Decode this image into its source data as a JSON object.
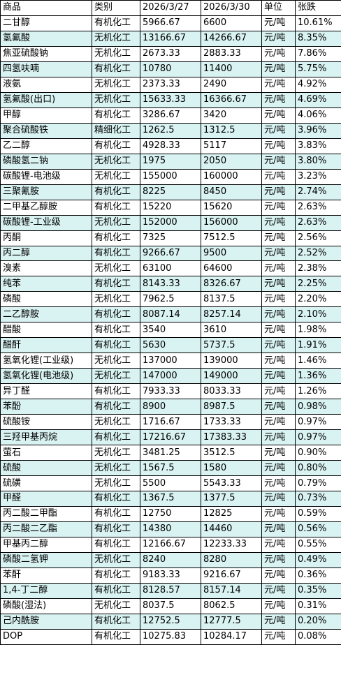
{
  "colors": {
    "row_alt_bg": "#d9f2f2",
    "border": "#000000",
    "text": "#000000"
  },
  "headers": [
    "商品",
    "类别",
    "2026/3/27",
    "2026/3/30",
    "单位",
    "张跌"
  ],
  "rows": [
    [
      "二甘醇",
      "有机化工",
      "5966.67",
      "6600",
      "元/吨",
      "10.61%"
    ],
    [
      "氢氟酸",
      "无机化工",
      "13166.67",
      "14266.67",
      "元/吨",
      "8.35%"
    ],
    [
      "焦亚硫酸钠",
      "无机化工",
      "2673.33",
      "2883.33",
      "元/吨",
      "7.86%"
    ],
    [
      "四氢呋喃",
      "有机化工",
      "10780",
      "11400",
      "元/吨",
      "5.75%"
    ],
    [
      "液氨",
      "无机化工",
      "2373.33",
      "2490",
      "元/吨",
      "4.92%"
    ],
    [
      "氢氟酸(出口)",
      "无机化工",
      "15633.33",
      "16366.67",
      "元/吨",
      "4.69%"
    ],
    [
      "甲醇",
      "有机化工",
      "3286.67",
      "3420",
      "元/吨",
      "4.06%"
    ],
    [
      "聚合硫酸铁",
      "精细化工",
      "1262.5",
      "1312.5",
      "元/吨",
      "3.96%"
    ],
    [
      "乙二醇",
      "有机化工",
      "4928.33",
      "5117",
      "元/吨",
      "3.83%"
    ],
    [
      "磷酸氢二钠",
      "无机化工",
      "1975",
      "2050",
      "元/吨",
      "3.80%"
    ],
    [
      "碳酸锂-电池级",
      "无机化工",
      "155000",
      "160000",
      "元/吨",
      "3.23%"
    ],
    [
      "三聚氰胺",
      "有机化工",
      "8225",
      "8450",
      "元/吨",
      "2.74%"
    ],
    [
      "二甲基乙醇胺",
      "有机化工",
      "15220",
      "15620",
      "元/吨",
      "2.63%"
    ],
    [
      "碳酸锂-工业级",
      "无机化工",
      "152000",
      "156000",
      "元/吨",
      "2.63%"
    ],
    [
      "丙酮",
      "有机化工",
      "7325",
      "7512.5",
      "元/吨",
      "2.56%"
    ],
    [
      "丙二醇",
      "有机化工",
      "9266.67",
      "9500",
      "元/吨",
      "2.52%"
    ],
    [
      "溴素",
      "无机化工",
      "63100",
      "64600",
      "元/吨",
      "2.38%"
    ],
    [
      "纯苯",
      "有机化工",
      "8143.33",
      "8326.67",
      "元/吨",
      "2.25%"
    ],
    [
      "磷酸",
      "无机化工",
      "7962.5",
      "8137.5",
      "元/吨",
      "2.20%"
    ],
    [
      "二乙醇胺",
      "有机化工",
      "8087.14",
      "8257.14",
      "元/吨",
      "2.10%"
    ],
    [
      "醋酸",
      "有机化工",
      "3540",
      "3610",
      "元/吨",
      "1.98%"
    ],
    [
      "醋酐",
      "有机化工",
      "5630",
      "5737.5",
      "元/吨",
      "1.91%"
    ],
    [
      "氢氧化锂(工业级)",
      "无机化工",
      "137000",
      "139000",
      "元/吨",
      "1.46%"
    ],
    [
      "氢氧化锂(电池级)",
      "无机化工",
      "147000",
      "149000",
      "元/吨",
      "1.36%"
    ],
    [
      "异丁醛",
      "有机化工",
      "7933.33",
      "8033.33",
      "元/吨",
      "1.26%"
    ],
    [
      "苯酚",
      "有机化工",
      "8900",
      "8987.5",
      "元/吨",
      "0.98%"
    ],
    [
      "硫酸铵",
      "无机化工",
      "1716.67",
      "1733.33",
      "元/吨",
      "0.97%"
    ],
    [
      "三羟甲基丙烷",
      "有机化工",
      "17216.67",
      "17383.33",
      "元/吨",
      "0.97%"
    ],
    [
      "萤石",
      "无机化工",
      "3481.25",
      "3512.5",
      "元/吨",
      "0.90%"
    ],
    [
      "硫酸",
      "无机化工",
      "1567.5",
      "1580",
      "元/吨",
      "0.80%"
    ],
    [
      "硫磺",
      "无机化工",
      "5500",
      "5543.33",
      "元/吨",
      "0.79%"
    ],
    [
      "甲醛",
      "有机化工",
      "1367.5",
      "1377.5",
      "元/吨",
      "0.73%"
    ],
    [
      "丙二酸二甲酯",
      "有机化工",
      "12750",
      "12825",
      "元/吨",
      "0.59%"
    ],
    [
      "丙二酸二乙酯",
      "有机化工",
      "14380",
      "14460",
      "元/吨",
      "0.56%"
    ],
    [
      "甲基丙二醇",
      "有机化工",
      "12166.67",
      "12233.33",
      "元/吨",
      "0.55%"
    ],
    [
      "磷酸二氢钾",
      "无机化工",
      "8240",
      "8280",
      "元/吨",
      "0.49%"
    ],
    [
      "苯酐",
      "有机化工",
      "9183.33",
      "9216.67",
      "元/吨",
      "0.36%"
    ],
    [
      "1,4-丁二醇",
      "有机化工",
      "8128.57",
      "8157.14",
      "元/吨",
      "0.35%"
    ],
    [
      "磷酸(湿法)",
      "无机化工",
      "8037.5",
      "8062.5",
      "元/吨",
      "0.31%"
    ],
    [
      "己内酰胺",
      "有机化工",
      "12752.5",
      "12777.5",
      "元/吨",
      "0.20%"
    ],
    [
      "DOP",
      "有机化工",
      "10275.83",
      "10284.17",
      "元/吨",
      "0.08%"
    ]
  ]
}
